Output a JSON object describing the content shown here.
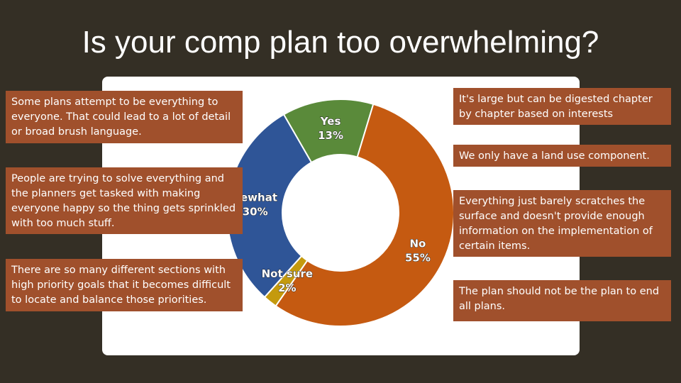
{
  "title": "Is your comp plan too overwhelming?",
  "chart_data": {
    "type": "pie",
    "title": "",
    "start_angle": -120,
    "series": [
      {
        "name": "Yes",
        "value": 13,
        "label": "Yes",
        "pct": "13%",
        "color": "#5a8a3a"
      },
      {
        "name": "No",
        "value": 55,
        "label": "No",
        "pct": "55%",
        "color": "#c55a11"
      },
      {
        "name": "Not sure",
        "value": 2,
        "label": "Not sure",
        "pct": "2%",
        "color": "#c49a0e"
      },
      {
        "name": "Somewhat",
        "value": 30,
        "label": "newhat",
        "pct": "30%",
        "color": "#2f5597"
      }
    ]
  },
  "left_boxes": [
    "Some plans attempt to be everything to everyone.  That could lead to a lot of detail or broad brush language.",
    "People are trying to solve everything and the planners get tasked with making everyone happy so the thing gets sprinkled with too much stuff.",
    "There are so many different sections with high priority goals that it becomes difficult to locate and balance those priorities."
  ],
  "right_boxes": [
    "It's large but can be digested chapter by chapter based on interests",
    "We only have a land use component.",
    "Everything just barely scratches the surface and doesn't provide enough information on the implementation of certain items.",
    "The plan should not be the plan to end all plans."
  ]
}
